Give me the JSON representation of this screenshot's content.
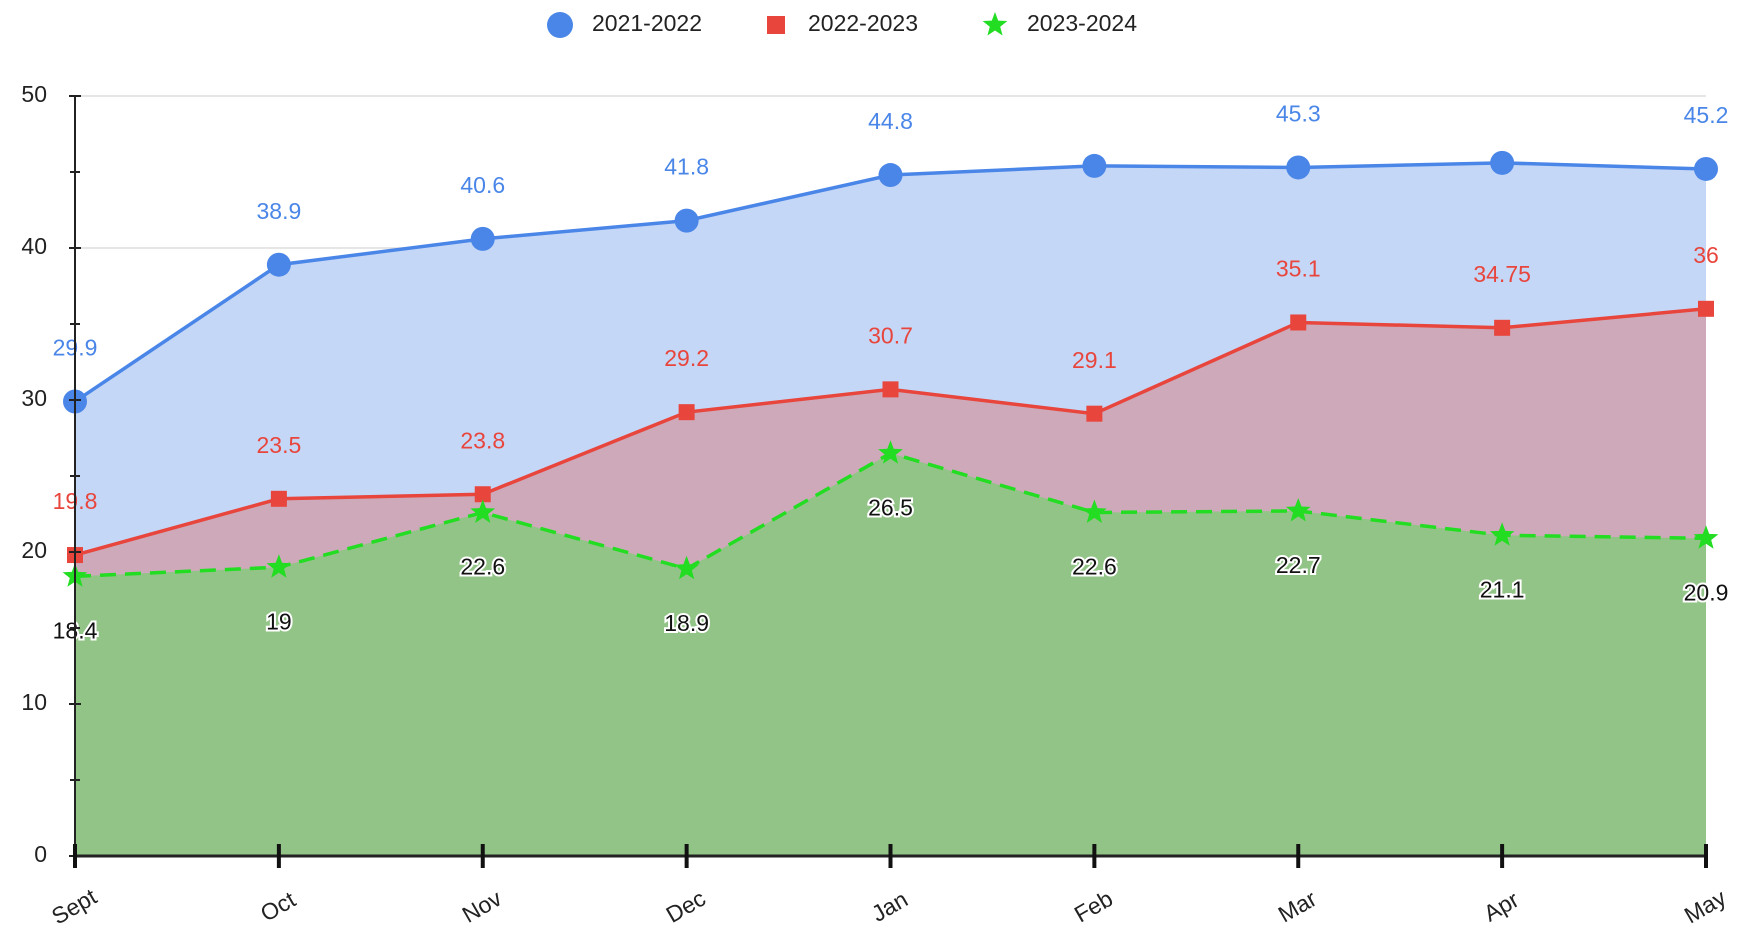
{
  "chart_data": {
    "type": "area",
    "categories": [
      "Sept",
      "Oct",
      "Nov",
      "Dec",
      "Jan",
      "Feb",
      "Mar",
      "Apr",
      "May"
    ],
    "series": [
      {
        "name": "2021-2022",
        "color": "#4a86e8",
        "area_color": "#c5d7f6",
        "label_color": "#4a86e8",
        "marker": "circle",
        "dash": false,
        "values": [
          29.9,
          38.9,
          40.6,
          41.8,
          44.8,
          45.4,
          45.3,
          45.6,
          45.2
        ],
        "value_labels": [
          "29.9",
          "38.9",
          "40.6",
          "41.8",
          "44.8",
          null,
          "45.3",
          null,
          "45.2"
        ]
      },
      {
        "name": "2022-2023",
        "color": "#e8453c",
        "area_color": "#cea9b9",
        "label_color": "#e8453c",
        "marker": "square",
        "dash": false,
        "values": [
          19.8,
          23.5,
          23.8,
          29.2,
          30.7,
          29.1,
          35.1,
          34.75,
          36
        ]
      },
      {
        "name": "2023-2024",
        "color": "#22dd22",
        "area_color": "#93c487",
        "label_color": "#111111",
        "marker": "star",
        "dash": true,
        "values": [
          18.4,
          19,
          22.6,
          18.9,
          26.5,
          22.6,
          22.7,
          21.1,
          20.9
        ]
      }
    ],
    "ylim": [
      0,
      50
    ],
    "yticks": [
      0,
      10,
      20,
      30,
      40,
      50
    ],
    "yminorticks": [
      5,
      15,
      25,
      35,
      45
    ],
    "grid": true,
    "legend": "top"
  }
}
